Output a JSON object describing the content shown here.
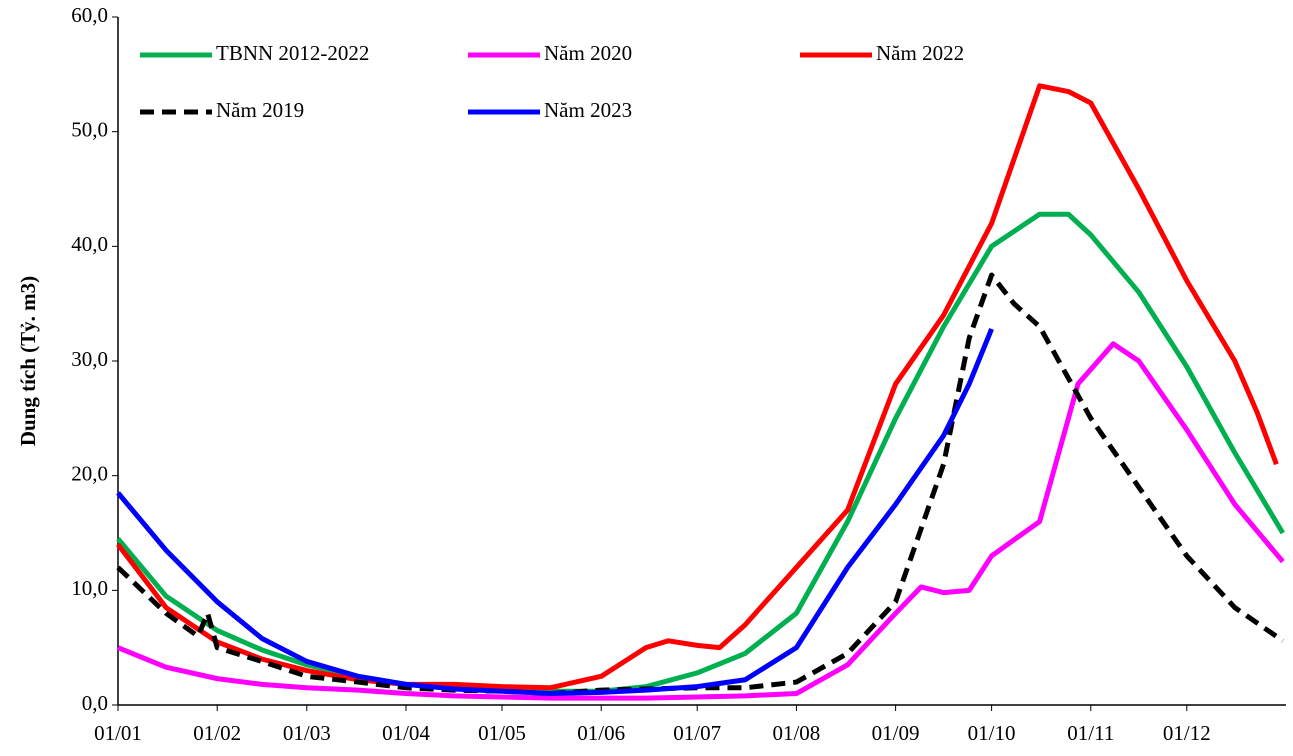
{
  "chart_data": {
    "type": "line",
    "y_label": "Dung tích (Tỷ. m3)",
    "xlim": [
      0,
      365
    ],
    "xticks": [
      {
        "value": 0,
        "label": "01/01"
      },
      {
        "value": 31,
        "label": "01/02"
      },
      {
        "value": 59,
        "label": "01/03"
      },
      {
        "value": 90,
        "label": "01/04"
      },
      {
        "value": 120,
        "label": "01/05"
      },
      {
        "value": 151,
        "label": "01/06"
      },
      {
        "value": 181,
        "label": "01/07"
      },
      {
        "value": 212,
        "label": "01/08"
      },
      {
        "value": 243,
        "label": "01/09"
      },
      {
        "value": 273,
        "label": "01/10"
      },
      {
        "value": 304,
        "label": "01/11"
      },
      {
        "value": 334,
        "label": "01/12"
      }
    ],
    "ylim": [
      0,
      60
    ],
    "yticks": [
      {
        "value": 0,
        "label": "0,0"
      },
      {
        "value": 10,
        "label": "10,0"
      },
      {
        "value": 20,
        "label": "20,0"
      },
      {
        "value": 30,
        "label": "30,0"
      },
      {
        "value": 40,
        "label": "40,0"
      },
      {
        "value": 50,
        "label": "50,0"
      },
      {
        "value": 60,
        "label": "60,0"
      }
    ],
    "grid": false,
    "series": [
      {
        "name": "TBNN 2012-2022",
        "color": "#00b050",
        "style": "solid",
        "x": [
          0,
          15,
          31,
          45,
          59,
          75,
          90,
          105,
          120,
          135,
          151,
          165,
          181,
          196,
          212,
          228,
          243,
          258,
          273,
          288,
          297,
          304,
          319,
          334,
          349,
          364
        ],
        "values": [
          14.5,
          9.5,
          6.5,
          4.8,
          3.5,
          2.5,
          1.8,
          1.5,
          1.3,
          1.2,
          1.2,
          1.6,
          2.8,
          4.5,
          8,
          16,
          25,
          33,
          40,
          42.8,
          42.8,
          41,
          36,
          29.5,
          22,
          15
        ]
      },
      {
        "name": "Năm 2020",
        "color": "#ff00ff",
        "style": "solid",
        "x": [
          0,
          15,
          31,
          45,
          59,
          75,
          90,
          105,
          120,
          135,
          151,
          165,
          181,
          196,
          212,
          228,
          243,
          251,
          258,
          266,
          273,
          288,
          300,
          311,
          319,
          334,
          349,
          364
        ],
        "values": [
          5,
          3.3,
          2.3,
          1.8,
          1.5,
          1.3,
          1,
          0.8,
          0.7,
          0.6,
          0.6,
          0.6,
          0.7,
          0.8,
          1,
          3.5,
          8,
          10.3,
          9.8,
          10,
          13,
          16,
          28,
          31.5,
          30,
          24,
          17.5,
          12.5
        ]
      },
      {
        "name": "Năm 2022",
        "color": "#ff0000",
        "style": "solid",
        "x": [
          0,
          15,
          31,
          45,
          59,
          75,
          90,
          105,
          120,
          135,
          151,
          165,
          172,
          181,
          188,
          196,
          212,
          228,
          243,
          258,
          273,
          283,
          288,
          297,
          304,
          319,
          334,
          349,
          356,
          362
        ],
        "values": [
          14,
          8.5,
          5.5,
          4,
          3,
          2.2,
          1.8,
          1.8,
          1.6,
          1.5,
          2.5,
          5,
          5.6,
          5.2,
          5,
          7,
          12,
          17,
          28,
          34,
          42,
          50,
          54,
          53.5,
          52.5,
          45,
          37,
          30,
          25.5,
          21
        ]
      },
      {
        "name": "Năm 2019",
        "color": "#000000",
        "style": "dashed",
        "x": [
          0,
          15,
          25,
          28,
          31,
          45,
          59,
          75,
          90,
          105,
          120,
          135,
          151,
          165,
          181,
          196,
          212,
          228,
          243,
          258,
          266,
          273,
          280,
          288,
          304,
          319,
          334,
          349,
          364
        ],
        "values": [
          12,
          8,
          6,
          8,
          5,
          3.8,
          2.5,
          2,
          1.5,
          1.3,
          1.2,
          1,
          1.3,
          1.4,
          1.5,
          1.5,
          2,
          4.5,
          9,
          21,
          32,
          37.5,
          35,
          33,
          25,
          19,
          13,
          8.5,
          5.6
        ]
      },
      {
        "name": "Năm 2023",
        "color": "#0000ff",
        "style": "solid",
        "x": [
          0,
          15,
          31,
          45,
          59,
          75,
          90,
          105,
          120,
          135,
          151,
          165,
          181,
          196,
          212,
          228,
          243,
          258,
          266,
          273
        ],
        "values": [
          18.5,
          13.5,
          9,
          5.8,
          3.8,
          2.5,
          1.8,
          1.4,
          1.2,
          1,
          1.1,
          1.3,
          1.6,
          2.2,
          5,
          12,
          17.5,
          23.5,
          28,
          32.8
        ]
      }
    ]
  }
}
